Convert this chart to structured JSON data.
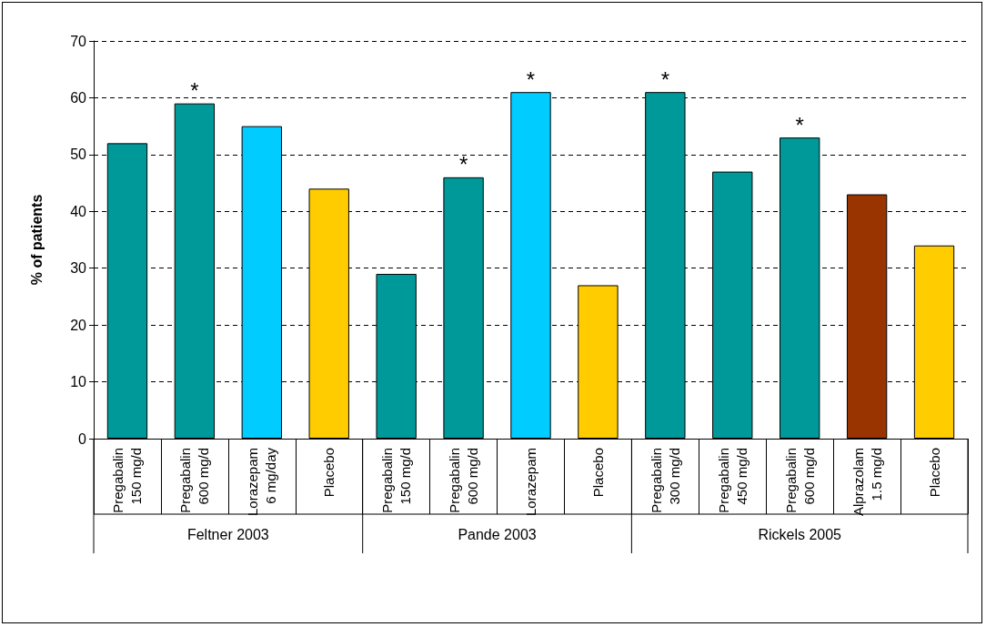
{
  "chart_data": {
    "type": "bar",
    "ylabel": "% of patients",
    "categories": [
      "Pregabalin\n150 mg/d",
      "Pregabalin\n600 mg/d",
      "Lorazepam\n6 mg/day",
      "Placebo",
      "Pregabalin\n150 mg/d",
      "Pregabalin\n600 mg/d",
      "Lorazepam",
      "Placebo",
      "Pregabalin\n300 mg/d",
      "Pregabalin\n450 mg/d",
      "Pregabalin\n600 mg/d",
      "Alprazolam\n1.5 mg/d",
      "Placebo"
    ],
    "values": [
      52,
      59,
      55,
      44,
      29,
      46,
      61,
      27,
      61,
      47,
      53,
      43,
      34
    ],
    "colors": [
      "#009999",
      "#009999",
      "#00ccff",
      "#ffcc00",
      "#009999",
      "#009999",
      "#00ccff",
      "#ffcc00",
      "#009999",
      "#009999",
      "#009999",
      "#993300",
      "#ffcc00"
    ],
    "ylim": [
      0,
      70
    ],
    "yticks": [
      0,
      10,
      20,
      30,
      40,
      50,
      60,
      70
    ],
    "grid": "y",
    "value_labels": [
      null,
      "*",
      null,
      null,
      null,
      "*",
      "*",
      null,
      "*",
      null,
      "*",
      null,
      null
    ],
    "annotations": [
      "Feltner 2003",
      "Pande 2003",
      "Rickels 2005"
    ]
  }
}
